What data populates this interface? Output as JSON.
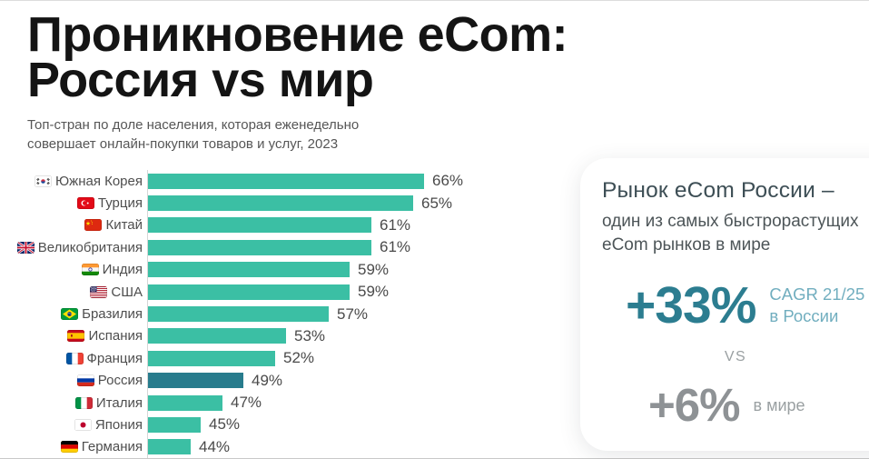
{
  "header": {
    "title_line1": "Проникновение eCom:",
    "title_line2": "Россия vs мир",
    "subtitle_line1": "Топ-стран по доле населения, которая еженедельно",
    "subtitle_line2": "совершает онлайн-покупки товаров и услуг, 2023"
  },
  "chart_data": {
    "type": "bar",
    "orientation": "horizontal",
    "title": "Топ-стран по доле населения, которая еженедельно совершает онлайн-покупки товаров и услуг, 2023",
    "categories": [
      "Южная Корея",
      "Турция",
      "Китай",
      "Великобритания",
      "Индия",
      "США",
      "Бразилия",
      "Испания",
      "Франция",
      "Россия",
      "Италия",
      "Япония",
      "Германия"
    ],
    "values": [
      66,
      65,
      61,
      61,
      59,
      59,
      57,
      53,
      52,
      49,
      47,
      45,
      44
    ],
    "flags": [
      "kr",
      "tr",
      "cn",
      "gb",
      "in",
      "us",
      "br",
      "es",
      "fr",
      "ru",
      "it",
      "jp",
      "de"
    ],
    "highlight_category": "Россия",
    "value_suffix": "%",
    "xlim": [
      40,
      66
    ],
    "grid": false,
    "legend": false,
    "colors": {
      "bar": "#3bbfa4",
      "highlight": "#287c8d",
      "axis_line": "#d6d6d6",
      "value_text": "#4a4a4a",
      "label_text": "#4e4e4e"
    }
  },
  "card": {
    "title": "Рынок eCom России –",
    "subtitle_line1": "один из самых быстрорастущих",
    "subtitle_line2": "eCom рынков в мире",
    "stat_russia": {
      "value": "+33%",
      "label_line1": "CAGR 21/25",
      "label_line2": "в России"
    },
    "vs": "VS",
    "stat_world": {
      "value": "+6%",
      "label": "в мире"
    },
    "colors": {
      "accent": "#2c7d90",
      "accent_light": "#71aebf",
      "muted": "#8e9295",
      "muted_light": "#9aa0a2"
    }
  }
}
